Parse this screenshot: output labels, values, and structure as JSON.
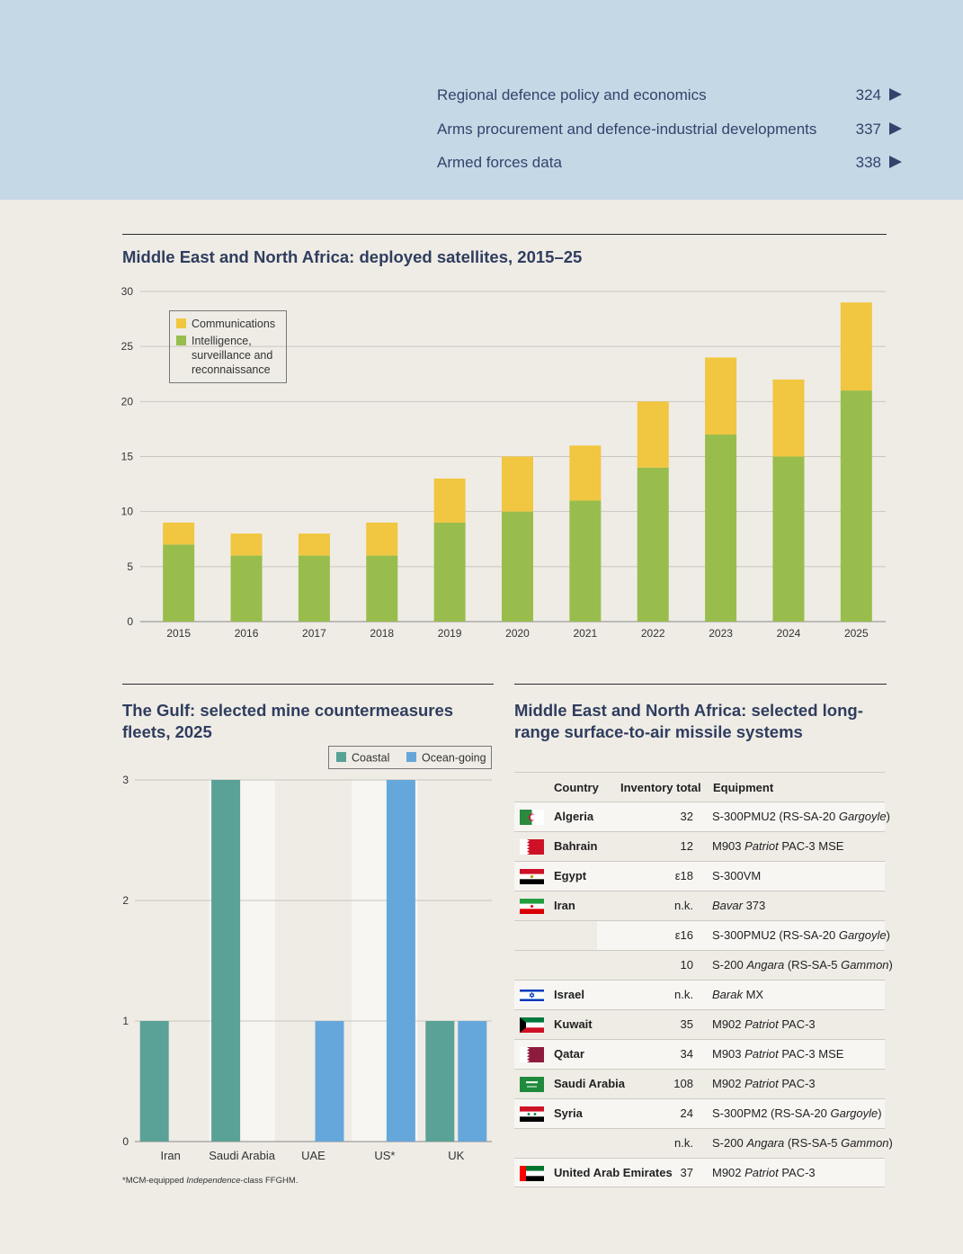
{
  "toc": [
    {
      "label": "Regional defence policy and economics",
      "page": "324"
    },
    {
      "label": "Arms procurement and defence-industrial developments",
      "page": "337"
    },
    {
      "label": "Armed forces data",
      "page": "338"
    }
  ],
  "chart_data": [
    {
      "type": "bar",
      "stacked": true,
      "title": "Middle East and North Africa: deployed satellites, 2015–25",
      "categories": [
        "2015",
        "2016",
        "2017",
        "2018",
        "2019",
        "2020",
        "2021",
        "2022",
        "2023",
        "2024",
        "2025"
      ],
      "series": [
        {
          "name": "Intelligence, surveillance and reconnaissance",
          "color": "#98bd4c",
          "values": [
            7,
            6,
            6,
            6,
            9,
            10,
            11,
            14,
            17,
            15,
            21
          ]
        },
        {
          "name": "Communications",
          "color": "#f1c640",
          "values": [
            2,
            2,
            2,
            3,
            4,
            5,
            5,
            6,
            7,
            7,
            8
          ]
        }
      ],
      "ylim": [
        0,
        30
      ],
      "yticks": [
        0,
        5,
        10,
        15,
        20,
        25,
        30
      ],
      "legend_placement": "top-left",
      "grid": true
    },
    {
      "type": "bar",
      "title": "The Gulf: selected mine countermeasures fleets, 2025",
      "categories": [
        "Iran",
        "Saudi Arabia",
        "UAE",
        "US*",
        "UK"
      ],
      "series": [
        {
          "name": "Coastal",
          "color": "#5aa197",
          "values": [
            1,
            3,
            0,
            0,
            1
          ]
        },
        {
          "name": "Ocean-going",
          "color": "#65a7da",
          "values": [
            0,
            0,
            1,
            3,
            1
          ]
        }
      ],
      "ylim": [
        0,
        3
      ],
      "yticks": [
        0,
        1,
        2,
        3
      ],
      "legend_placement": "top-right",
      "grid": true,
      "footnote": {
        "prefix": "*MCM-equipped ",
        "italic": "Independence",
        "suffix": "-class FFGHM."
      }
    }
  ],
  "sam_table": {
    "title": "Middle East and North Africa: selected long-range surface-to-air missile systems",
    "headers": {
      "country": "Country",
      "inventory": "Inventory total",
      "equipment": "Equipment"
    },
    "rows": [
      {
        "country": "Algeria",
        "flag": "algeria-flag",
        "inventory": "32",
        "equipment": [
          {
            "t": "S-300PMU2 (RS-SA-20 "
          },
          {
            "t": "Gargoyle",
            "i": true
          },
          {
            "t": ")"
          }
        ]
      },
      {
        "country": "Bahrain",
        "flag": "bahrain-flag",
        "inventory": "12",
        "equipment": [
          {
            "t": "M903 "
          },
          {
            "t": "Patriot",
            "i": true
          },
          {
            "t": " PAC-3 MSE"
          }
        ]
      },
      {
        "country": "Egypt",
        "flag": "egypt-flag",
        "inventory": "ε18",
        "equipment": [
          {
            "t": "S-300VM"
          }
        ]
      },
      {
        "country": "Iran",
        "flag": "iran-flag",
        "inventory": "n.k.",
        "equipment": [
          {
            "t": "Bavar",
            "i": true
          },
          {
            "t": " 373"
          }
        ]
      },
      {
        "country": "",
        "flag": "",
        "inventory": "ε16",
        "equipment": [
          {
            "t": "S-300PMU2 (RS-SA-20 "
          },
          {
            "t": "Gargoyle",
            "i": true
          },
          {
            "t": ")"
          }
        ]
      },
      {
        "country": "",
        "flag": "",
        "inventory": "10",
        "equipment": [
          {
            "t": "S-200 "
          },
          {
            "t": "Angara",
            "i": true
          },
          {
            "t": " (RS-SA-5 "
          },
          {
            "t": "Gammon",
            "i": true
          },
          {
            "t": ")"
          }
        ]
      },
      {
        "country": "Israel",
        "flag": "israel-flag",
        "inventory": "n.k.",
        "equipment": [
          {
            "t": "Barak",
            "i": true
          },
          {
            "t": " MX"
          }
        ]
      },
      {
        "country": "Kuwait",
        "flag": "kuwait-flag",
        "inventory": "35",
        "equipment": [
          {
            "t": "M902 "
          },
          {
            "t": "Patriot",
            "i": true
          },
          {
            "t": " PAC-3"
          }
        ]
      },
      {
        "country": "Qatar",
        "flag": "qatar-flag",
        "inventory": "34",
        "equipment": [
          {
            "t": "M903 "
          },
          {
            "t": "Patriot",
            "i": true
          },
          {
            "t": " PAC-3 MSE"
          }
        ]
      },
      {
        "country": "Saudi Arabia",
        "flag": "saudi-arabia-flag",
        "inventory": "108",
        "equipment": [
          {
            "t": "M902 "
          },
          {
            "t": "Patriot",
            "i": true
          },
          {
            "t": " PAC-3"
          }
        ]
      },
      {
        "country": "Syria",
        "flag": "syria-flag",
        "inventory": "24",
        "equipment": [
          {
            "t": "S-300PM2 (RS-SA-20 "
          },
          {
            "t": "Gargoyle",
            "i": true
          },
          {
            "t": ")"
          }
        ]
      },
      {
        "country": "",
        "flag": "",
        "inventory": "n.k.",
        "equipment": [
          {
            "t": "S-200 "
          },
          {
            "t": "Angara",
            "i": true
          },
          {
            "t": " (RS-SA-5 "
          },
          {
            "t": "Gammon",
            "i": true
          },
          {
            "t": ")"
          }
        ]
      },
      {
        "country": "United Arab Emirates",
        "flag": "uae-flag",
        "inventory": "37",
        "equipment": [
          {
            "t": "M902 "
          },
          {
            "t": "Patriot",
            "i": true
          },
          {
            "t": " PAC-3"
          }
        ]
      }
    ]
  }
}
